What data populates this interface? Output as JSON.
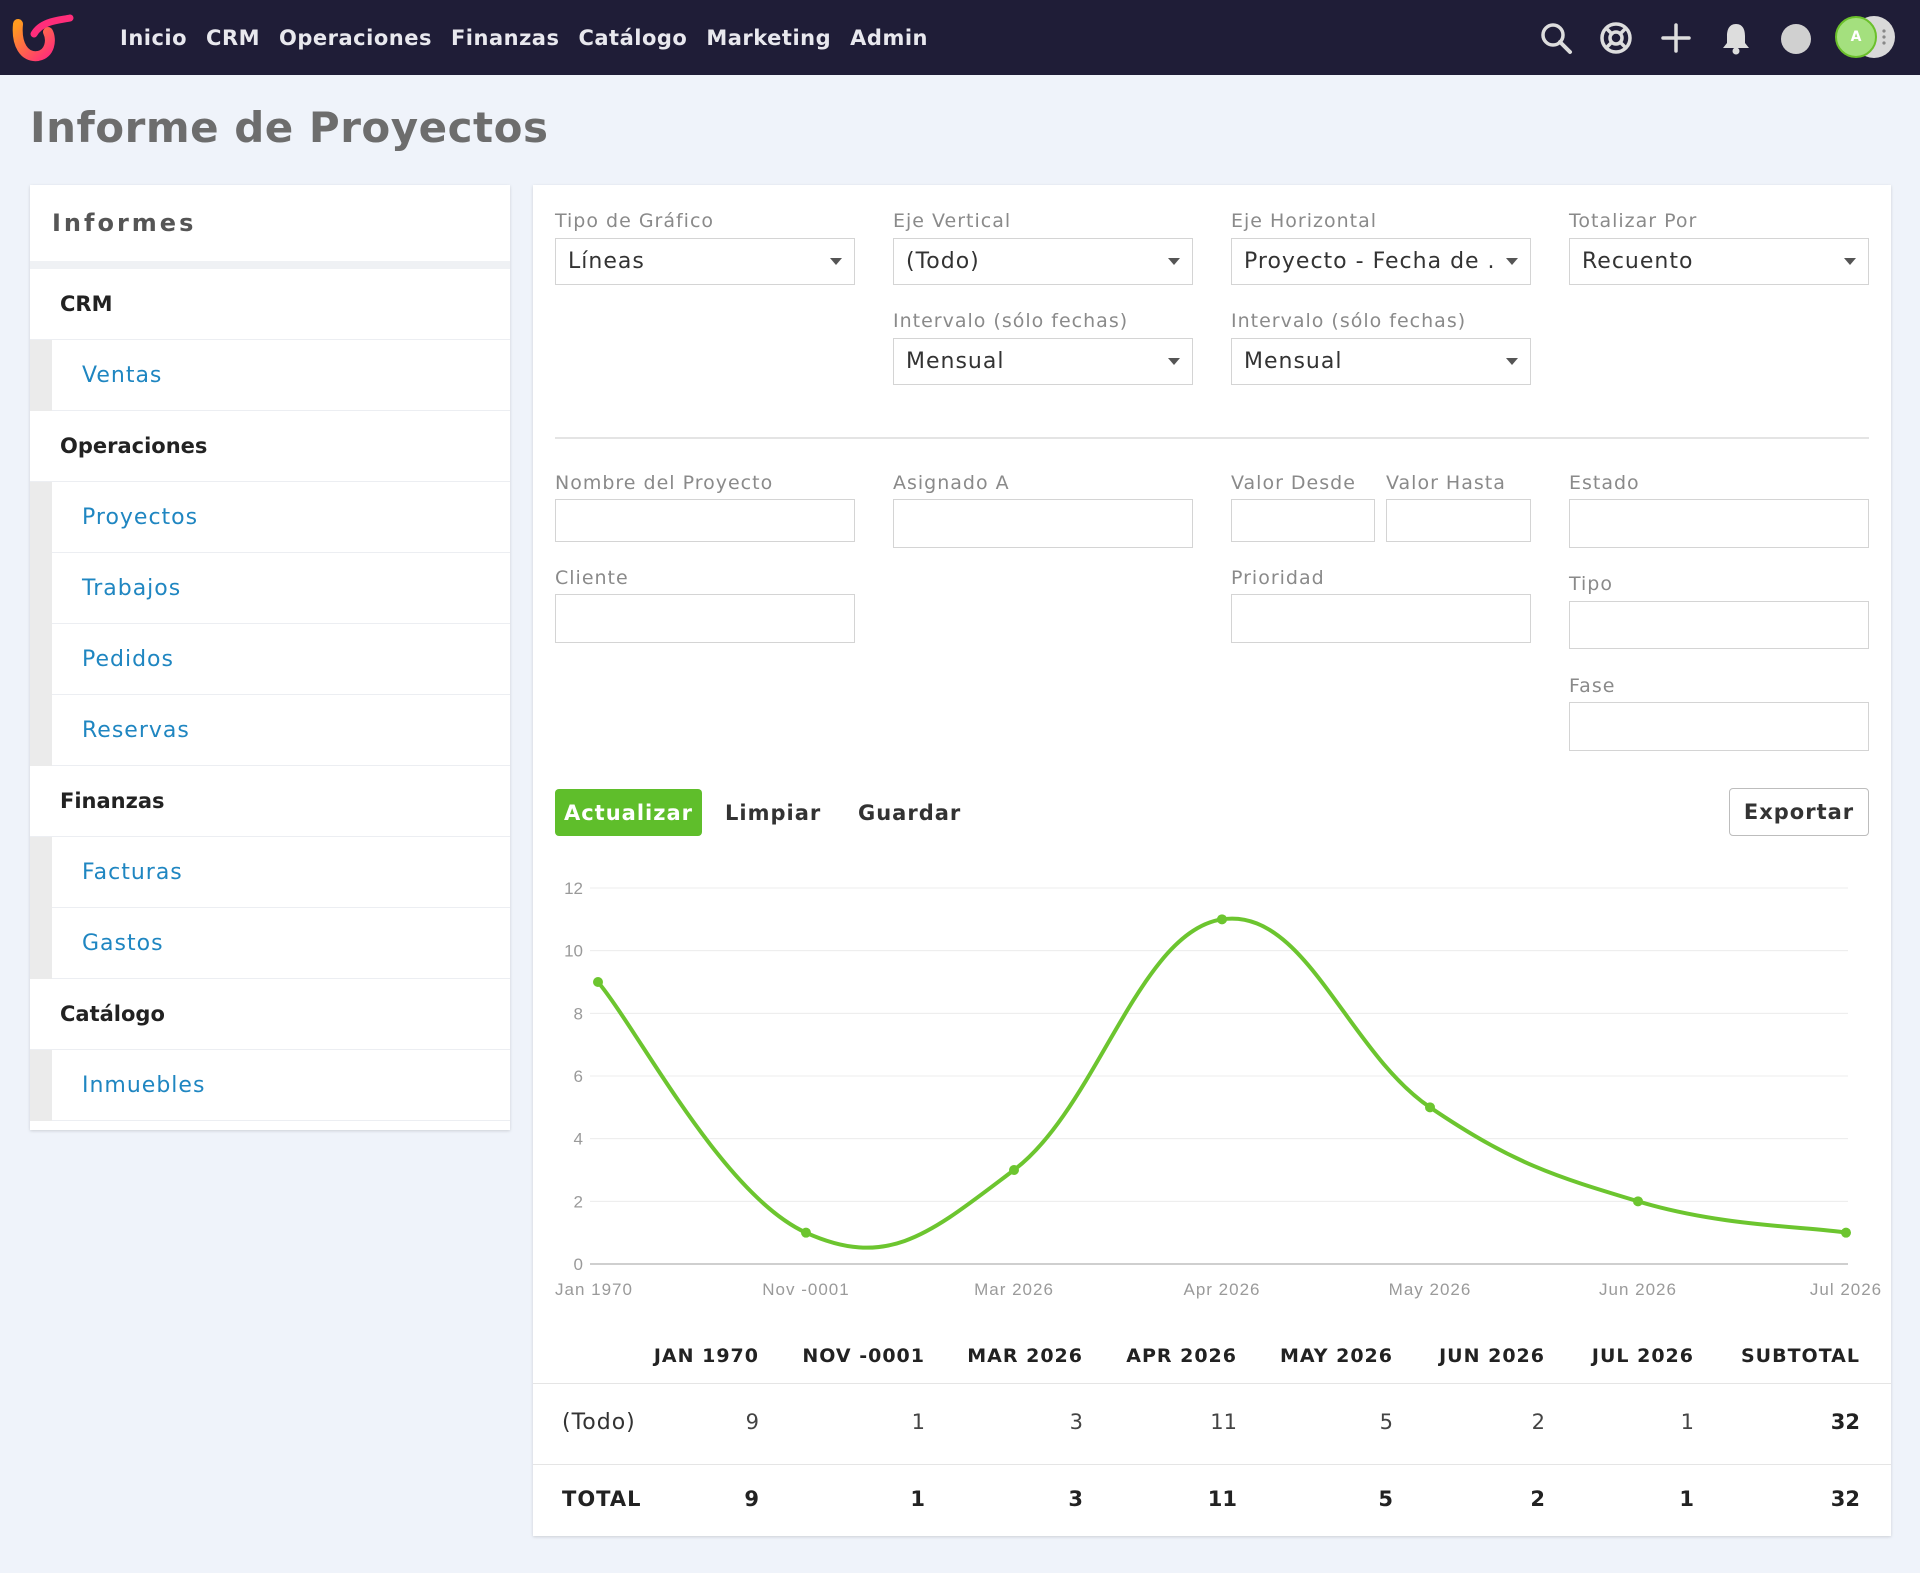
{
  "nav": {
    "items": [
      "Inicio",
      "CRM",
      "Operaciones",
      "Finanzas",
      "Catálogo",
      "Marketing",
      "Admin"
    ],
    "avatar_initial": "A"
  },
  "page": {
    "title": "Informe de Proyectos"
  },
  "sidebar": {
    "title": "Informes",
    "groups": [
      {
        "label": "CRM",
        "items": [
          "Ventas"
        ]
      },
      {
        "label": "Operaciones",
        "items": [
          "Proyectos",
          "Trabajos",
          "Pedidos",
          "Reservas"
        ]
      },
      {
        "label": "Finanzas",
        "items": [
          "Facturas",
          "Gastos"
        ]
      },
      {
        "label": "Catálogo",
        "items": [
          "Inmuebles"
        ]
      }
    ]
  },
  "config": {
    "chart_type": {
      "label": "Tipo de Gráfico",
      "value": "Líneas"
    },
    "vertical_axis": {
      "label": "Eje Vertical",
      "value": "(Todo)"
    },
    "horizontal_axis": {
      "label": "Eje Horizontal",
      "value": "Proyecto - Fecha de ..."
    },
    "total_by": {
      "label": "Totalizar Por",
      "value": "Recuento"
    },
    "vertical_interval": {
      "label": "Intervalo (sólo fechas)",
      "value": "Mensual"
    },
    "horizontal_interval": {
      "label": "Intervalo (sólo fechas)",
      "value": "Mensual"
    }
  },
  "filters": {
    "project_name": "Nombre del Proyecto",
    "assigned_to": "Asignado A",
    "value_from": "Valor Desde",
    "value_to": "Valor Hasta",
    "status": "Estado",
    "client": "Cliente",
    "priority": "Prioridad",
    "type": "Tipo",
    "phase": "Fase"
  },
  "actions": {
    "update": "Actualizar",
    "clear": "Limpiar",
    "save": "Guardar",
    "export": "Exportar"
  },
  "colors": {
    "accent": "#5fbe2b",
    "line": "#6cc52f",
    "nav_bg": "#1f1d37",
    "link": "#1f86c1"
  },
  "chart_data": {
    "type": "line",
    "categories": [
      "Jan 1970",
      "Nov -0001",
      "Mar 2026",
      "Apr 2026",
      "May 2026",
      "Jun 2026",
      "Jul 2026"
    ],
    "values": [
      9,
      1,
      3,
      11,
      5,
      2,
      1
    ],
    "ylim": [
      0,
      12
    ],
    "yticks": [
      0,
      2,
      4,
      6,
      8,
      10,
      12
    ],
    "grid": true,
    "legend": "none"
  },
  "table": {
    "headers": [
      "JAN 1970",
      "NOV -0001",
      "MAR 2026",
      "APR 2026",
      "MAY 2026",
      "JUN 2026",
      "JUL 2026",
      "SUBTOTAL"
    ],
    "rows": [
      {
        "label": "(Todo)",
        "values": [
          "9",
          "1",
          "3",
          "11",
          "5",
          "2",
          "1"
        ],
        "subtotal": "32"
      }
    ],
    "total": {
      "label": "TOTAL",
      "values": [
        "9",
        "1",
        "3",
        "11",
        "5",
        "2",
        "1",
        "32"
      ]
    }
  }
}
